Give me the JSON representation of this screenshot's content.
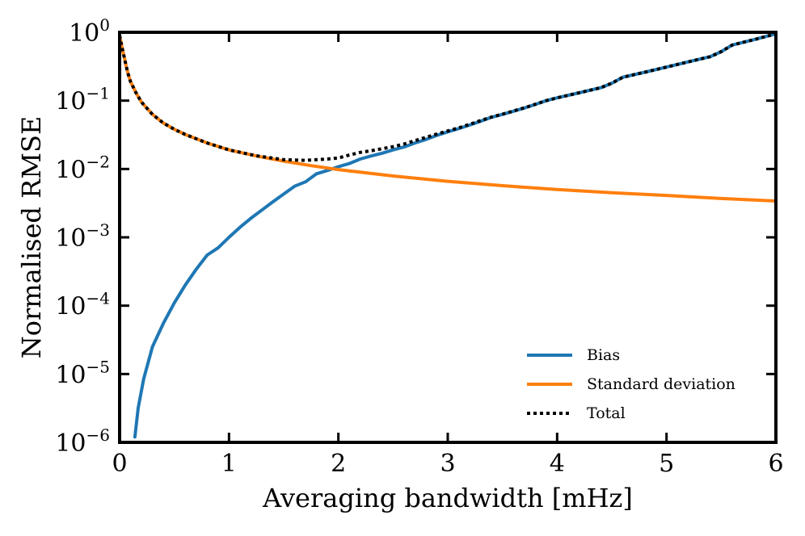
{
  "chart_data": {
    "type": "line",
    "title": "",
    "xlabel": "Averaging bandwidth [mHz]",
    "ylabel": "Normalised RMSE",
    "xlim": [
      0,
      6
    ],
    "ylim": [
      1e-06,
      1
    ],
    "yscale": "log",
    "xticks": [
      0,
      1,
      2,
      3,
      4,
      5,
      6
    ],
    "xtick_labels": [
      "0",
      "1",
      "2",
      "3",
      "4",
      "5",
      "6"
    ],
    "yticks": [
      {
        "exp": -6,
        "base": "10",
        "sup": "−6"
      },
      {
        "exp": -5,
        "base": "10",
        "sup": "−5"
      },
      {
        "exp": -4,
        "base": "10",
        "sup": "−4"
      },
      {
        "exp": -3,
        "base": "10",
        "sup": "−3"
      },
      {
        "exp": -2,
        "base": "10",
        "sup": "−2"
      },
      {
        "exp": -1,
        "base": "10",
        "sup": "−1"
      },
      {
        "exp": 0,
        "base": "10",
        "sup": "0"
      }
    ],
    "grid": false,
    "legend_position": "bottom-right",
    "series": [
      {
        "name": "Bias",
        "color": "#1f77b4",
        "style": "solid",
        "x": [
          0.14,
          0.17,
          0.22,
          0.3,
          0.4,
          0.5,
          0.6,
          0.7,
          0.8,
          0.9,
          1.0,
          1.1,
          1.2,
          1.3,
          1.4,
          1.5,
          1.6,
          1.7,
          1.8,
          1.9,
          2.0,
          2.1,
          2.2,
          2.3,
          2.4,
          2.5,
          2.6,
          2.7,
          2.8,
          2.9,
          3.0,
          3.1,
          3.2,
          3.3,
          3.4,
          3.5,
          3.6,
          3.7,
          3.8,
          3.9,
          4.0,
          4.2,
          4.4,
          4.5,
          4.6,
          4.8,
          5.0,
          5.2,
          5.4,
          5.5,
          5.6,
          5.8,
          6.0
        ],
        "y": [
          1.2e-06,
          3.2e-06,
          8.5e-06,
          2.5e-05,
          5.5e-05,
          0.00011,
          0.0002,
          0.00034,
          0.00055,
          0.0007,
          0.001,
          0.0014,
          0.0019,
          0.0025,
          0.0033,
          0.0043,
          0.0056,
          0.0065,
          0.0085,
          0.0095,
          0.0108,
          0.012,
          0.014,
          0.0155,
          0.017,
          0.019,
          0.021,
          0.024,
          0.027,
          0.031,
          0.035,
          0.039,
          0.044,
          0.05,
          0.057,
          0.063,
          0.07,
          0.078,
          0.088,
          0.1,
          0.11,
          0.13,
          0.155,
          0.18,
          0.22,
          0.26,
          0.31,
          0.37,
          0.44,
          0.52,
          0.65,
          0.78,
          0.95
        ]
      },
      {
        "name": "Standard deviation",
        "color": "#ff7f0e",
        "style": "solid",
        "x": [
          0.0,
          0.02,
          0.04,
          0.06,
          0.08,
          0.1,
          0.15,
          0.2,
          0.3,
          0.4,
          0.5,
          0.6,
          0.8,
          1.0,
          1.25,
          1.5,
          1.75,
          2.0,
          2.5,
          3.0,
          3.5,
          4.0,
          4.5,
          5.0,
          5.5,
          6.0
        ],
        "y": [
          0.9,
          0.62,
          0.45,
          0.32,
          0.24,
          0.19,
          0.13,
          0.095,
          0.063,
          0.047,
          0.038,
          0.032,
          0.024,
          0.019,
          0.0155,
          0.013,
          0.0112,
          0.0098,
          0.0079,
          0.0066,
          0.0057,
          0.005,
          0.0045,
          0.0041,
          0.0037,
          0.0034
        ]
      },
      {
        "name": "Total",
        "color": "#000000",
        "style": "dotted",
        "x": [
          0.0,
          0.02,
          0.04,
          0.06,
          0.08,
          0.1,
          0.15,
          0.2,
          0.3,
          0.4,
          0.5,
          0.6,
          0.8,
          1.0,
          1.25,
          1.5,
          1.6,
          1.7,
          1.8,
          1.9,
          2.0,
          2.1,
          2.2,
          2.3,
          2.4,
          2.5,
          2.6,
          2.7,
          2.8,
          2.9,
          3.0,
          3.1,
          3.2,
          3.3,
          3.4,
          3.5,
          3.6,
          3.7,
          3.8,
          3.9,
          4.0,
          4.2,
          4.4,
          4.5,
          4.6,
          4.8,
          5.0,
          5.2,
          5.4,
          5.5,
          5.6,
          5.8,
          6.0
        ],
        "y": [
          0.9,
          0.62,
          0.45,
          0.32,
          0.24,
          0.19,
          0.13,
          0.095,
          0.063,
          0.047,
          0.038,
          0.032,
          0.024,
          0.019,
          0.0156,
          0.0137,
          0.0135,
          0.0134,
          0.0137,
          0.014,
          0.0145,
          0.016,
          0.0175,
          0.0185,
          0.0198,
          0.0212,
          0.0232,
          0.026,
          0.029,
          0.0325,
          0.036,
          0.04,
          0.045,
          0.051,
          0.0575,
          0.0635,
          0.0705,
          0.0785,
          0.0885,
          0.1,
          0.11,
          0.13,
          0.155,
          0.18,
          0.22,
          0.26,
          0.31,
          0.37,
          0.44,
          0.52,
          0.65,
          0.78,
          0.95
        ]
      }
    ]
  }
}
